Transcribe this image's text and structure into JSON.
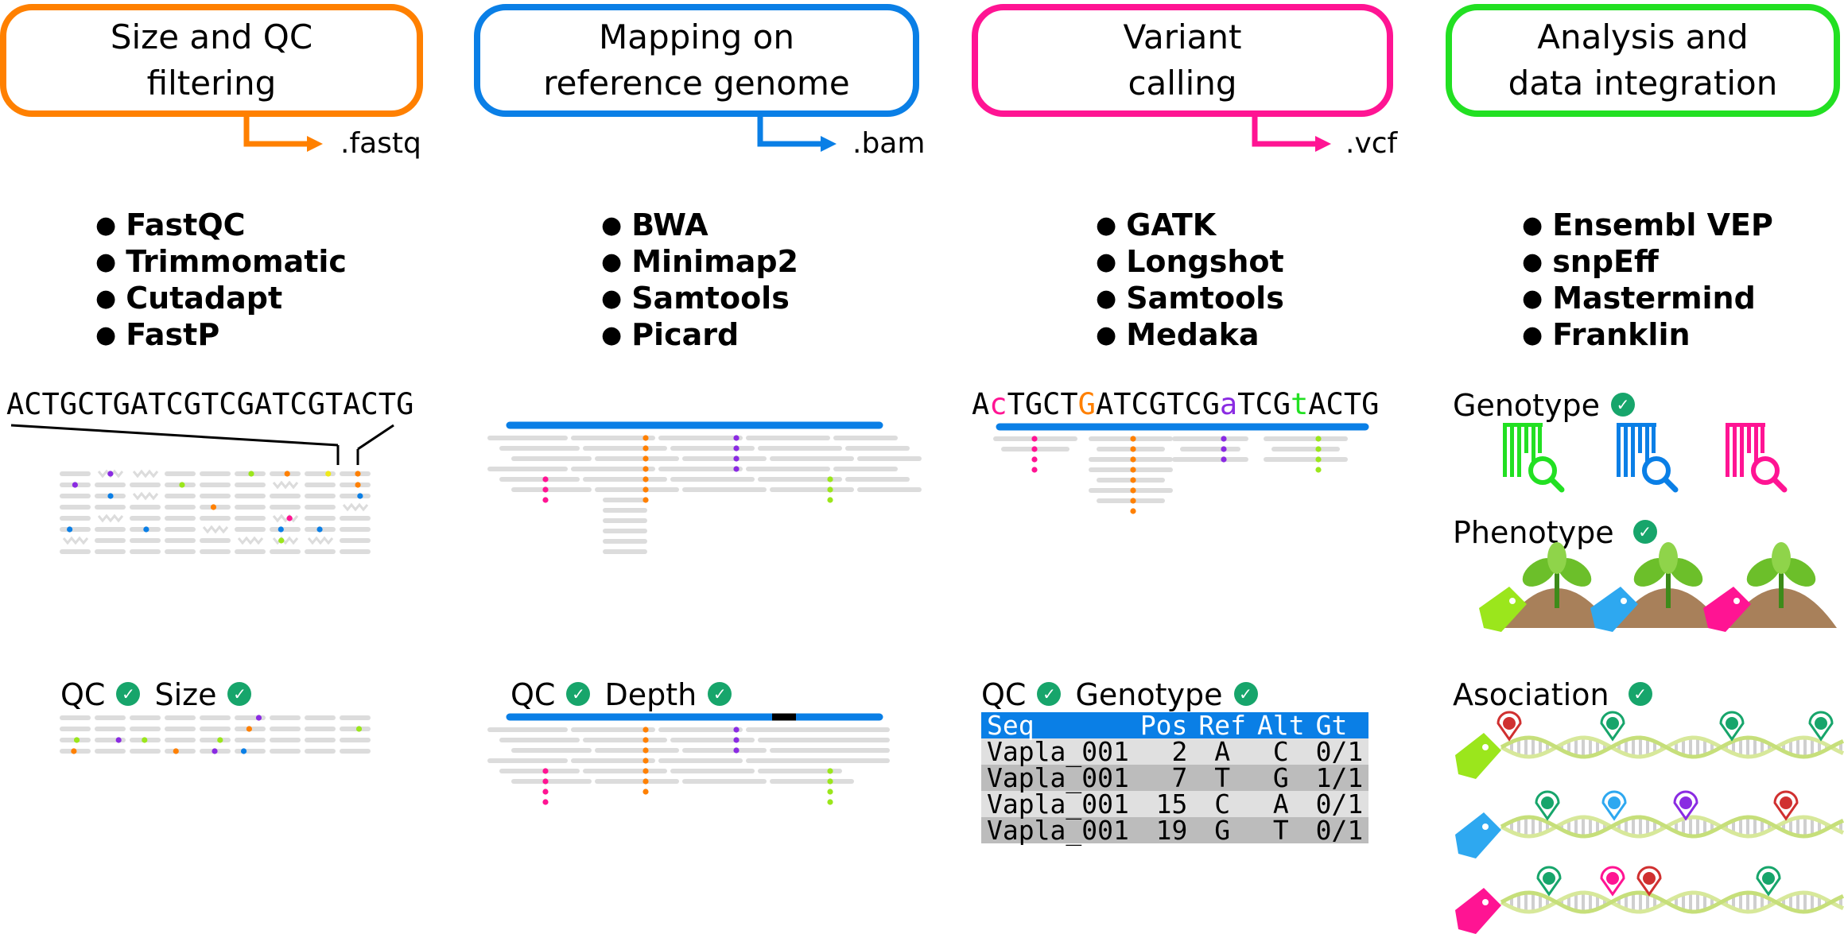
{
  "colors": {
    "orange": "#ff8000",
    "blue": "#0a7fe6",
    "magenta": "#ff1493",
    "green": "#22e022",
    "check": "#17a56b",
    "read": "#dcdcdc",
    "purple": "#8a2be2",
    "lime": "#9be61c",
    "yellow": "#f0ea1a",
    "plant": "#6cbf2a",
    "soil": "#a8805a"
  },
  "stages": [
    {
      "title": "Size and QC\nfiltering",
      "output": ".fastq",
      "color": "#ff8000",
      "tools": [
        "FastQC",
        "Trimmomatic",
        "Cutadapt",
        "FastP"
      ]
    },
    {
      "title": "Mapping on\nreference genome",
      "output": ".bam",
      "color": "#0a7fe6",
      "tools": [
        "BWA",
        "Minimap2",
        "Samtools",
        "Picard"
      ]
    },
    {
      "title": "Variant\ncalling",
      "output": ".vcf",
      "color": "#ff1493",
      "tools": [
        "GATK",
        "Longshot",
        "Samtools",
        "Medaka"
      ]
    },
    {
      "title": "Analysis and\ndata integration",
      "output": "",
      "color": "#22e022",
      "tools": [
        "Ensembl VEP",
        "snpEff",
        "Mastermind",
        "Franklin"
      ]
    }
  ],
  "qc": {
    "sequence": "ACTGCTGATCGTCGATCGTACTG",
    "caption_qc": "QC",
    "caption_size": "Size"
  },
  "mapping": {
    "caption_qc": "QC",
    "caption_depth": "Depth"
  },
  "variant": {
    "sequence_parts": [
      {
        "t": "A",
        "c": "#000000"
      },
      {
        "t": "c",
        "c": "#ff1493"
      },
      {
        "t": "TGCT",
        "c": "#000000"
      },
      {
        "t": "G",
        "c": "#ff8000"
      },
      {
        "t": "ATCGTCG",
        "c": "#000000"
      },
      {
        "t": "a",
        "c": "#8a2be2"
      },
      {
        "t": "TCG",
        "c": "#000000"
      },
      {
        "t": "t",
        "c": "#22e022"
      },
      {
        "t": "ACTG",
        "c": "#000000"
      }
    ],
    "caption_qc": "QC",
    "caption_genotype": "Genotype",
    "table": {
      "headers": [
        "Seq",
        "Pos",
        "Ref",
        "Alt",
        "Gt"
      ],
      "rows": [
        [
          "Vapla_001",
          "2",
          "A",
          "C",
          "0/1"
        ],
        [
          "Vapla_001",
          "7",
          "T",
          "G",
          "1/1"
        ],
        [
          "Vapla_001",
          "15",
          "C",
          "A",
          "0/1"
        ],
        [
          "Vapla_001",
          "19",
          "G",
          "T",
          "0/1"
        ]
      ]
    }
  },
  "analysis": {
    "genotype_label": "Genotype",
    "phenotype_label": "Phenotype",
    "association_label": "Asociation"
  }
}
